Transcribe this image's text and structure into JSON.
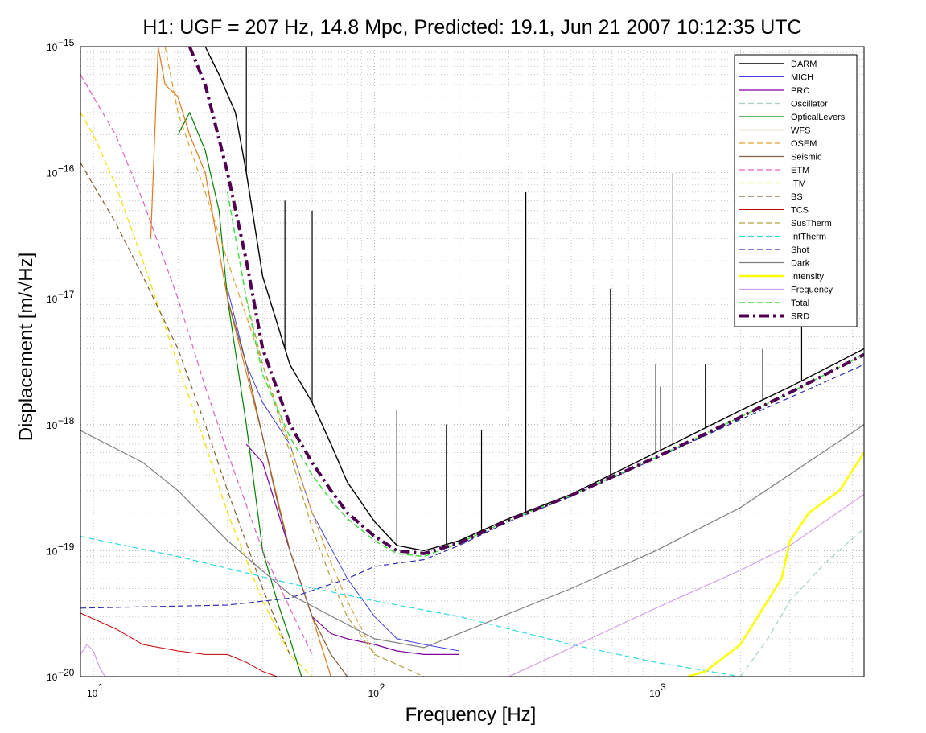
{
  "chart_data": {
    "type": "line",
    "title": "H1: UGF = 207 Hz, 14.8 Mpc, Predicted: 19.1, Jun 21 2007 10:12:35 UTC",
    "xlabel": "Frequency [Hz]",
    "ylabel": "Displacement [m/√Hz]",
    "xscale": "log",
    "yscale": "log",
    "xlim": [
      9,
      5500
    ],
    "ylim": [
      1e-20,
      1e-15
    ],
    "grid": true,
    "legend_position": "top-right",
    "x_ticks": [
      {
        "value": 10,
        "base": "10",
        "exp": "1"
      },
      {
        "value": 100,
        "base": "10",
        "exp": "2"
      },
      {
        "value": 1000,
        "base": "10",
        "exp": "3"
      }
    ],
    "y_ticks": [
      {
        "value": 1e-15,
        "base": "10",
        "exp": "−15"
      },
      {
        "value": 1e-16,
        "base": "10",
        "exp": "−16"
      },
      {
        "value": 1e-17,
        "base": "10",
        "exp": "−17"
      },
      {
        "value": 1e-18,
        "base": "10",
        "exp": "−18"
      },
      {
        "value": 1e-19,
        "base": "10",
        "exp": "−19"
      },
      {
        "value": 1e-20,
        "base": "10",
        "exp": "−20"
      }
    ],
    "series": [
      {
        "name": "DARM",
        "color": "#000000",
        "dash": "solid",
        "width": 1.4,
        "x": [
          25,
          28,
          32,
          35,
          40,
          50,
          60,
          70,
          80,
          100,
          120,
          150,
          200,
          300,
          500,
          1000,
          2000,
          3000,
          5500
        ],
        "y": [
          1e-15,
          6e-16,
          3e-16,
          1e-16,
          1.5e-17,
          3e-18,
          1.5e-18,
          7e-19,
          3.5e-19,
          1.7e-19,
          1.1e-19,
          1e-19,
          1.2e-19,
          1.8e-19,
          2.8e-19,
          6e-19,
          1.3e-18,
          2e-18,
          4e-18
        ],
        "peaks": [
          {
            "x": 35,
            "y": 1e-15
          },
          {
            "x": 48,
            "y": 6e-17
          },
          {
            "x": 60,
            "y": 5e-17
          },
          {
            "x": 120,
            "y": 1.3e-18
          },
          {
            "x": 180,
            "y": 1e-18
          },
          {
            "x": 240,
            "y": 9e-19
          },
          {
            "x": 345,
            "y": 7e-17
          },
          {
            "x": 690,
            "y": 1.2e-17
          },
          {
            "x": 1000,
            "y": 3e-18
          },
          {
            "x": 1040,
            "y": 2e-18
          },
          {
            "x": 1150,
            "y": 1e-16
          },
          {
            "x": 1500,
            "y": 3e-18
          },
          {
            "x": 2400,
            "y": 4e-18
          },
          {
            "x": 3300,
            "y": 1e-17
          }
        ]
      },
      {
        "name": "MICH",
        "color": "#4040e0",
        "dash": "solid",
        "width": 1,
        "x": [
          30,
          35,
          40,
          50,
          60,
          80,
          100,
          120,
          150,
          200
        ],
        "y": [
          1.2e-17,
          3e-18,
          1.5e-18,
          7e-19,
          2e-19,
          6e-20,
          3e-20,
          2e-20,
          1.8e-20,
          1.6e-20
        ]
      },
      {
        "name": "PRC",
        "color": "#8000a0",
        "dash": "solid",
        "width": 1.2,
        "x": [
          35,
          40,
          50,
          60,
          70,
          80,
          100,
          120,
          150,
          200
        ],
        "y": [
          7e-19,
          5e-19,
          1e-19,
          3e-20,
          2.2e-20,
          2e-20,
          1.8e-20,
          1.6e-20,
          1.5e-20,
          1.5e-20
        ]
      },
      {
        "name": "Oscillator",
        "color": "#a8d0c8",
        "dash": "dash",
        "width": 1.2,
        "x": [
          2000,
          2500,
          3000,
          4000,
          5500
        ],
        "y": [
          1e-20,
          2e-20,
          4e-20,
          8e-20,
          1.5e-19
        ]
      },
      {
        "name": "OpticalLevers",
        "color": "#008000",
        "dash": "solid",
        "width": 1.2,
        "x": [
          20,
          22,
          25,
          28,
          30,
          35,
          40,
          45,
          50,
          55
        ],
        "y": [
          2e-16,
          3e-16,
          1.5e-16,
          5e-17,
          1e-17,
          1e-18,
          1e-19,
          4e-20,
          2e-20,
          1e-20
        ]
      },
      {
        "name": "WFS",
        "color": "#e07820",
        "dash": "solid",
        "width": 1.2,
        "x": [
          16,
          17,
          18,
          20,
          22,
          25,
          30,
          40,
          50,
          60,
          70
        ],
        "y": [
          3e-17,
          1e-15,
          5e-16,
          4e-16,
          2e-16,
          1e-16,
          1e-17,
          8e-19,
          1e-19,
          3e-20,
          1e-20
        ]
      },
      {
        "name": "OSEM",
        "color": "#e0a030",
        "dash": "dash",
        "width": 1.2,
        "x": [
          18,
          20,
          25,
          30,
          40,
          50,
          60,
          70,
          80,
          100
        ],
        "y": [
          1e-15,
          3e-16,
          7e-17,
          2e-17,
          3e-18,
          7e-19,
          2e-19,
          8e-20,
          4e-20,
          1.5e-20
        ]
      },
      {
        "name": "Seismic",
        "color": "#806040",
        "dash": "solid",
        "width": 1.2,
        "x": [
          30,
          35,
          40,
          45,
          50,
          60,
          70,
          80
        ],
        "y": [
          1e-17,
          3e-18,
          8e-19,
          2.5e-19,
          1e-19,
          3e-20,
          1.5e-20,
          1e-20
        ]
      },
      {
        "name": "ETM",
        "color": "#e060c0",
        "dash": "dash",
        "width": 1.2,
        "x": [
          9,
          10,
          12,
          15,
          20,
          25,
          30,
          40,
          50,
          60
        ],
        "y": [
          6e-16,
          4e-16,
          2e-16,
          6e-17,
          1e-17,
          2e-18,
          6e-19,
          1e-19,
          3.5e-20,
          1.5e-20
        ]
      },
      {
        "name": "ITM",
        "color": "#f0e000",
        "dash": "dash",
        "width": 1.2,
        "x": [
          9,
          10,
          12,
          15,
          20,
          25,
          30,
          40,
          50,
          60
        ],
        "y": [
          3e-16,
          2e-16,
          8e-17,
          2e-17,
          3e-18,
          7e-19,
          2e-19,
          4e-20,
          1.5e-20,
          1e-20
        ]
      },
      {
        "name": "BS",
        "color": "#806030",
        "dash": "dash",
        "width": 1.2,
        "x": [
          9,
          10,
          12,
          15,
          20,
          25,
          30,
          40,
          50
        ],
        "y": [
          1.2e-16,
          8e-17,
          4e-17,
          1.5e-17,
          4e-18,
          1e-18,
          3e-19,
          5e-20,
          1.5e-20
        ]
      },
      {
        "name": "TCS",
        "color": "#c00000",
        "dash": "solid",
        "width": 1,
        "x": [
          9,
          12,
          15,
          20,
          25,
          30,
          35,
          40,
          45
        ],
        "y": [
          3.2e-20,
          2.4e-20,
          1.8e-20,
          1.6e-20,
          1.5e-20,
          1.5e-20,
          1.3e-20,
          1.1e-20,
          1e-20
        ]
      },
      {
        "name": "SusTherm",
        "color": "#b0a040",
        "dash": "dash",
        "width": 1.2,
        "x": [
          35,
          40,
          50,
          60,
          70,
          80,
          100,
          150
        ],
        "y": [
          1e-17,
          3e-18,
          6e-19,
          1.5e-19,
          6e-20,
          3e-20,
          1.5e-20,
          1e-20
        ]
      },
      {
        "name": "IntTherm",
        "color": "#30d8e0",
        "dash": "dash",
        "width": 1.2,
        "x": [
          9,
          20,
          50,
          100,
          200,
          500,
          1000,
          2000
        ],
        "y": [
          1.3e-19,
          9e-20,
          5.5e-20,
          4e-20,
          3e-20,
          1.8e-20,
          1.3e-20,
          1e-20
        ]
      },
      {
        "name": "Shot",
        "color": "#3030b0",
        "dash": "dash",
        "width": 1.2,
        "x": [
          9,
          30,
          50,
          80,
          100,
          150,
          200,
          300,
          500,
          1000,
          2000,
          5500
        ],
        "y": [
          3.5e-20,
          3.7e-20,
          4.2e-20,
          6e-20,
          7.5e-20,
          8.5e-20,
          1.1e-19,
          1.7e-19,
          2.7e-19,
          5.4e-19,
          1.1e-18,
          3e-18
        ]
      },
      {
        "name": "Dark",
        "color": "#808080",
        "dash": "solid",
        "width": 1.2,
        "x": [
          9,
          15,
          20,
          30,
          50,
          100,
          150,
          200,
          500,
          1000,
          2000,
          5500
        ],
        "y": [
          9e-19,
          5e-19,
          3e-19,
          1.2e-19,
          4.5e-20,
          2e-20,
          1.7e-20,
          2.2e-20,
          5e-20,
          1e-19,
          2.2e-19,
          1e-18
        ]
      },
      {
        "name": "Intensity",
        "color": "#ffff00",
        "dash": "solid",
        "width": 2.5,
        "x": [
          1300,
          1500,
          2000,
          2500,
          2800,
          3000,
          3500,
          4500,
          5500
        ],
        "y": [
          1e-20,
          1.1e-20,
          1.8e-20,
          4e-20,
          6e-20,
          1.2e-19,
          2e-19,
          3e-19,
          6e-19
        ]
      },
      {
        "name": "Frequency",
        "color": "#d8a0e8",
        "dash": "solid",
        "width": 1.2,
        "x": [
          9,
          9.5,
          10,
          10.5,
          11,
          12
        ],
        "x2": [
          300,
          500,
          1000,
          2000,
          3000,
          5500
        ],
        "y": [
          1.5e-20,
          1.8e-20,
          1.6e-20,
          1.2e-20,
          1e-20,
          1e-20
        ],
        "y2": [
          1e-20,
          1.7e-20,
          3.5e-20,
          7e-20,
          1.1e-19,
          2.8e-19
        ]
      },
      {
        "name": "Total",
        "color": "#40e040",
        "dash": "dash",
        "width": 1.5,
        "x": [
          30,
          35,
          40,
          50,
          60,
          70,
          80,
          100,
          120,
          150,
          200,
          300,
          500,
          1000,
          2000,
          3000,
          5500
        ],
        "y": [
          7e-17,
          1e-17,
          2.5e-18,
          8e-19,
          4e-19,
          2.5e-19,
          1.8e-19,
          1.2e-19,
          9.5e-20,
          9e-20,
          1.15e-19,
          1.75e-19,
          2.75e-19,
          5.5e-19,
          1.15e-18,
          1.8e-18,
          3.6e-18
        ]
      },
      {
        "name": "SRD",
        "color": "#500050",
        "dash": "dashdot",
        "width": 4,
        "x": [
          22,
          25,
          30,
          35,
          40,
          50,
          60,
          70,
          80,
          100,
          120,
          150,
          200,
          300,
          500,
          1000,
          2000,
          3000,
          5500
        ],
        "y": [
          1e-15,
          5e-16,
          1e-16,
          2e-17,
          4e-18,
          1e-18,
          5e-19,
          3e-19,
          2e-19,
          1.3e-19,
          1e-19,
          9.5e-20,
          1.15e-19,
          1.75e-19,
          2.75e-19,
          5.5e-19,
          1.15e-18,
          1.8e-18,
          3.6e-18
        ]
      }
    ]
  }
}
